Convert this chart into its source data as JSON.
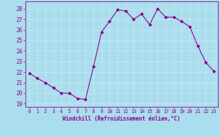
{
  "x": [
    0,
    1,
    2,
    3,
    4,
    5,
    6,
    7,
    8,
    9,
    10,
    11,
    12,
    13,
    14,
    15,
    16,
    17,
    18,
    19,
    20,
    21,
    22,
    23
  ],
  "y": [
    21.9,
    21.4,
    21.0,
    20.5,
    20.0,
    20.0,
    19.5,
    19.4,
    22.5,
    25.8,
    26.8,
    27.9,
    27.8,
    27.0,
    27.5,
    26.5,
    28.0,
    27.2,
    27.2,
    26.8,
    26.3,
    24.5,
    22.9,
    22.1
  ],
  "line_color": "#880088",
  "marker": "D",
  "marker_size": 2.2,
  "bg_color": "#aaddee",
  "grid_color": "#bbddee",
  "xlabel": "Windchill (Refroidissement éolien,°C)",
  "ylabel_ticks": [
    19,
    20,
    21,
    22,
    23,
    24,
    25,
    26,
    27,
    28
  ],
  "xticks": [
    0,
    1,
    2,
    3,
    4,
    5,
    6,
    7,
    8,
    9,
    10,
    11,
    12,
    13,
    14,
    15,
    16,
    17,
    18,
    19,
    20,
    21,
    22,
    23
  ],
  "ylim": [
    18.7,
    28.7
  ],
  "xlim": [
    -0.5,
    23.5
  ],
  "tick_color": "#880088",
  "label_color": "#880088"
}
